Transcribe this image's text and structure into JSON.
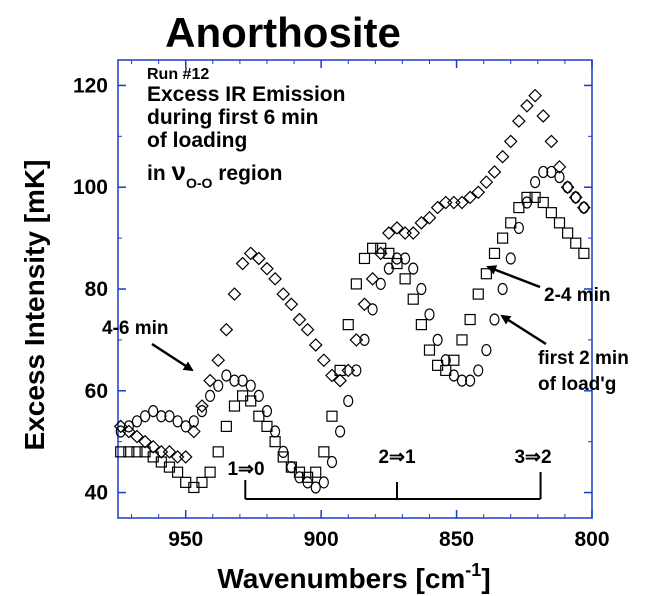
{
  "chart_data": {
    "type": "scatter",
    "title": "Anorthosite",
    "xlabel": "Wavenumbers [cm",
    "xlabel_sup": "-1",
    "xlabel_end": "]",
    "ylabel": "Excess Intensity [mK]",
    "xlim": [
      975,
      800
    ],
    "ylim": [
      35,
      125
    ],
    "x_ticks": [
      950,
      900,
      850,
      800
    ],
    "y_ticks": [
      40,
      60,
      80,
      100,
      120
    ],
    "grid": false,
    "annotations": {
      "run": "Run #12",
      "line1": "Excess IR Emission",
      "line2": "during first 6 min",
      "line3": "of loading",
      "line4_prefix": "in ",
      "nu": "ν",
      "nu_sub": "O-O",
      "line4_suffix": " region",
      "label_46": "4-6 min",
      "label_24": "2-4 min",
      "label_f1": "first 2 min",
      "label_f2": "of load'g",
      "trans_10": "1⇒0",
      "trans_21": "2⇒1",
      "trans_32": "3⇒2"
    },
    "transition_markers": [
      928,
      872,
      819
    ],
    "series": [
      {
        "name": "4-6 min",
        "marker": "diamond",
        "x": [
          974,
          971,
          968,
          965,
          962,
          959,
          956,
          953,
          950,
          947,
          944,
          941,
          938,
          935,
          932,
          929,
          926,
          923,
          920,
          917,
          914,
          911,
          908,
          905,
          902,
          899,
          896,
          893,
          890,
          887,
          884,
          881,
          878,
          875,
          872,
          869,
          866,
          863,
          860,
          857,
          854,
          851,
          848,
          845,
          842,
          839,
          836,
          833,
          830,
          827,
          824,
          821,
          818,
          815,
          812,
          809,
          806,
          803
        ],
        "y": [
          53,
          52,
          51,
          50,
          49,
          48,
          48,
          47,
          47,
          52,
          57,
          62,
          66,
          72,
          79,
          85,
          87,
          86,
          84,
          82,
          79,
          77,
          74,
          72,
          69,
          66,
          63,
          62,
          64,
          70,
          77,
          82,
          87,
          91,
          92,
          91,
          91,
          93,
          94,
          96,
          97,
          97,
          97,
          98,
          99,
          101,
          103,
          106,
          109,
          113,
          116,
          118,
          114,
          109,
          104,
          100,
          98,
          96
        ]
      },
      {
        "name": "2-4 min",
        "marker": "square",
        "x": [
          974,
          971,
          968,
          965,
          962,
          959,
          956,
          953,
          950,
          947,
          944,
          941,
          938,
          935,
          932,
          929,
          926,
          923,
          920,
          917,
          914,
          911,
          908,
          905,
          902,
          899,
          896,
          893,
          890,
          887,
          884,
          881,
          878,
          875,
          872,
          869,
          866,
          863,
          860,
          857,
          854,
          851,
          848,
          845,
          842,
          839,
          836,
          833,
          830,
          827,
          824,
          821,
          818,
          815,
          812,
          809,
          806,
          803
        ],
        "y": [
          48,
          48,
          48,
          48,
          47,
          46,
          45,
          44,
          42,
          41,
          42,
          44,
          48,
          53,
          57,
          59,
          58,
          55,
          53,
          50,
          47,
          45,
          44,
          43,
          44,
          48,
          55,
          64,
          73,
          81,
          86,
          88,
          88,
          87,
          85,
          82,
          78,
          73,
          68,
          65,
          64,
          66,
          70,
          74,
          79,
          83,
          87,
          90,
          93,
          96,
          98,
          98,
          97,
          95,
          93,
          91,
          89,
          87
        ]
      },
      {
        "name": "first 2 min of load'g",
        "marker": "circle",
        "x": [
          974,
          971,
          968,
          965,
          962,
          959,
          956,
          953,
          950,
          947,
          944,
          941,
          938,
          935,
          932,
          929,
          926,
          923,
          920,
          917,
          914,
          911,
          908,
          905,
          902,
          899,
          896,
          893,
          890,
          887,
          884,
          881,
          878,
          875,
          872,
          869,
          866,
          863,
          860,
          857,
          854,
          851,
          848,
          845,
          842,
          839,
          836,
          833,
          830,
          827,
          824,
          821,
          818,
          815,
          812,
          809,
          806,
          803
        ],
        "y": [
          52,
          53,
          54,
          55,
          56,
          55,
          55,
          54,
          53,
          54,
          56,
          59,
          61,
          63,
          62,
          62,
          61,
          59,
          56,
          52,
          48,
          45,
          43,
          42,
          41,
          42,
          46,
          52,
          58,
          64,
          70,
          76,
          81,
          84,
          86,
          86,
          84,
          80,
          75,
          70,
          66,
          63,
          62,
          62,
          64,
          68,
          74,
          80,
          86,
          92,
          97,
          101,
          103,
          103,
          102,
          100,
          98,
          96
        ]
      }
    ]
  }
}
